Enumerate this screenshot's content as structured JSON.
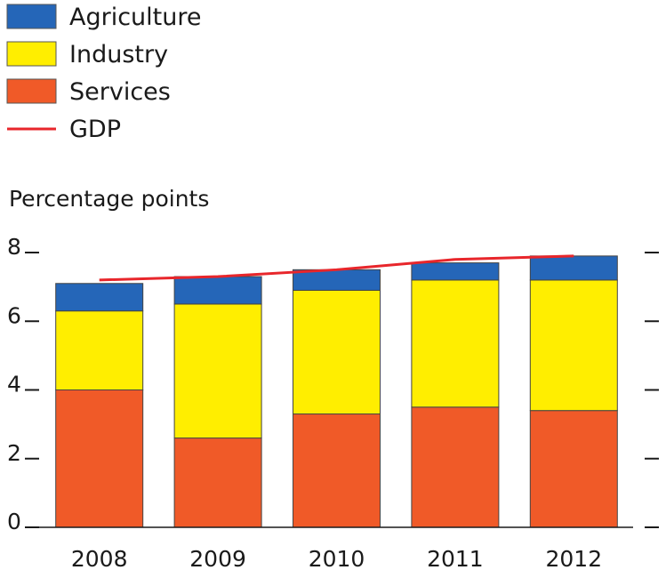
{
  "chart_data": {
    "type": "bar",
    "stacked": true,
    "ylabel": "Percentage points",
    "categories": [
      "2008",
      "2009",
      "2010",
      "2011",
      "2012"
    ],
    "ylim": [
      0,
      8
    ],
    "yticks": [
      "0",
      "2",
      "4",
      "6",
      "8"
    ],
    "series": [
      {
        "name": "Services",
        "color": "#f05a28",
        "values": [
          4.0,
          2.6,
          3.3,
          3.5,
          3.4
        ]
      },
      {
        "name": "Industry",
        "color": "#ffee00",
        "values": [
          2.3,
          3.9,
          3.6,
          3.7,
          3.8
        ]
      },
      {
        "name": "Agriculture",
        "color": "#2566b8",
        "values": [
          0.8,
          0.8,
          0.6,
          0.5,
          0.7
        ]
      }
    ],
    "line": {
      "name": "GDP",
      "color": "#e8262b",
      "values": [
        7.2,
        7.3,
        7.5,
        7.8,
        7.9
      ]
    },
    "legend": {
      "position": "top-left",
      "entries": [
        {
          "name": "Agriculture",
          "kind": "box",
          "color": "#2566b8"
        },
        {
          "name": "Industry",
          "kind": "box",
          "color": "#ffee00"
        },
        {
          "name": "Services",
          "kind": "box",
          "color": "#f05a28"
        },
        {
          "name": "GDP",
          "kind": "line",
          "color": "#e8262b"
        }
      ]
    },
    "grid": false
  }
}
